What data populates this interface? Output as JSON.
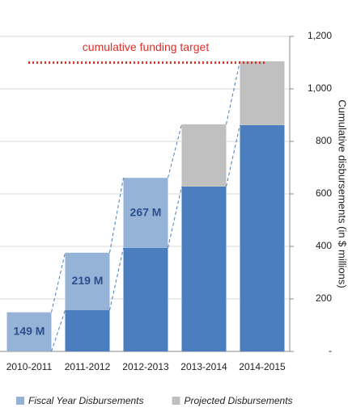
{
  "chart_data": {
    "type": "stacked_bar",
    "categories": [
      "2010-2011",
      "2011-2012",
      "2012-2013",
      "2013-2014",
      "2014-2015"
    ],
    "series": [
      {
        "color": "#4a7ebf",
        "values": [
          null,
          157,
          394,
          628,
          862
        ]
      },
      {
        "name": "Fiscal Year Disbursements",
        "color": "#95b3d7",
        "values": [
          149,
          219,
          267,
          null,
          null
        ],
        "value_labels": [
          "149 M",
          "219 M",
          "267 M",
          null,
          null
        ]
      },
      {
        "name": "Projected Disbursements",
        "color": "#c0c0c0",
        "values": [
          null,
          null,
          null,
          237,
          243
        ]
      }
    ],
    "y_label": "Cumulative disbursements (in $ millions)",
    "ylim": [
      0,
      1200
    ],
    "yticks": [
      {
        "value": 0,
        "label": "-"
      },
      200,
      400,
      600,
      800,
      {
        "value": 1000,
        "label": "1,000"
      },
      {
        "value": 1200,
        "label": "1,200"
      }
    ],
    "y_axis_side": "right",
    "grid": true,
    "target": {
      "label": "cumulative funding target",
      "value": 1100,
      "color": "#d9312b"
    },
    "legend": "bottom"
  }
}
